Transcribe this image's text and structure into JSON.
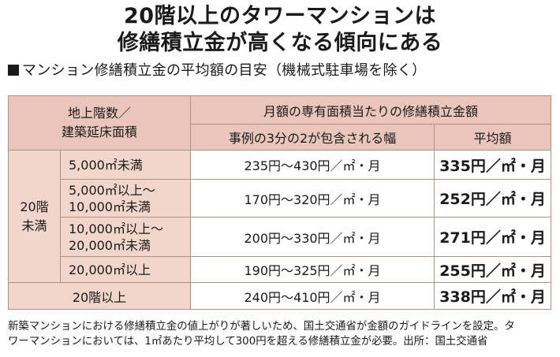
{
  "title_line1": "20階以上のタワーマンションは",
  "title_line2": "修繕積立金が高くなる傾向にある",
  "subtitle": "マンション修繕積立金の平均額の目安（機械式駐車場を除く）",
  "table": {
    "header_left_line1": "地上階数／",
    "header_left_line2": "建築延床面積",
    "header_right_top": "月額の専有面積当たりの修繕積立金額",
    "header_range": "事例の3分の2が包含される幅",
    "header_avg": "平均額",
    "group_20_below_line1": "20階",
    "group_20_below_line2": "未満",
    "rows": [
      {
        "label": "5,000㎡未満",
        "label2": "",
        "range": "235円〜430円／㎡・月",
        "avg": "335円／㎡・月"
      },
      {
        "label": "5,000㎡以上〜",
        "label2": "10,000㎡未満",
        "range": "170円〜320円／㎡・月",
        "avg": "252円／㎡・月"
      },
      {
        "label": "10,000㎡以上〜",
        "label2": "20,000㎡未満",
        "range": "200円〜330円／㎡・月",
        "avg": "271円／㎡・月"
      },
      {
        "label": "20,000㎡以上",
        "label2": "",
        "range": "190円〜325円／㎡・月",
        "avg": "255円／㎡・月"
      }
    ],
    "row_20_above": {
      "label": "20階以上",
      "range": "240円〜410円／㎡・月",
      "avg": "338円／㎡・月"
    }
  },
  "note_line1": "新築マンションにおける修繕積立金の値上がりが著しいため、国土交通省が金額のガイドラインを設定。タ",
  "note_line2": "ワーマンションにおいては、1㎡あたり平均して300円を超える修繕積立金が必要。出所：国土交通省"
}
